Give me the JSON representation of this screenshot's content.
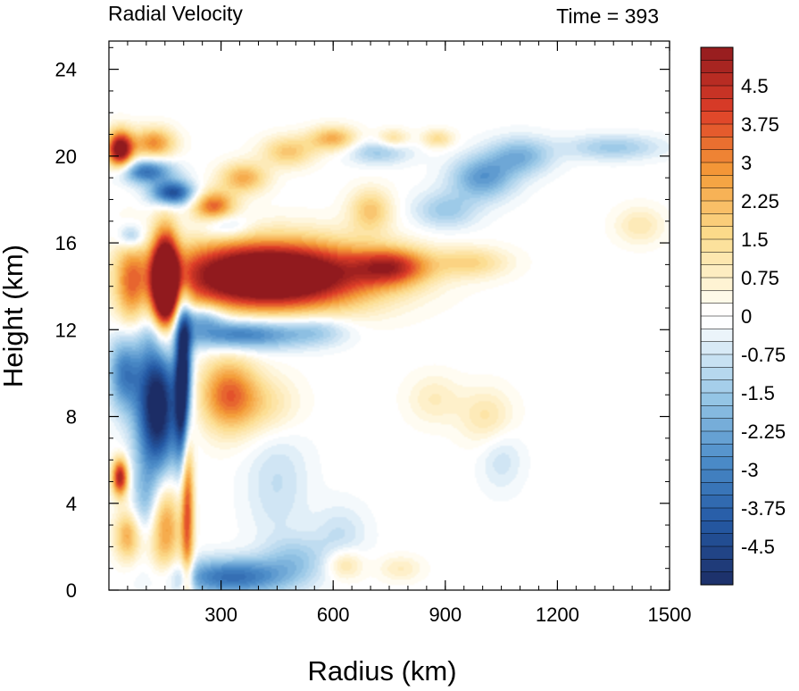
{
  "chart_data": {
    "type": "heatmap",
    "title": "Radial Velocity",
    "subtitle": "Time = 393",
    "xlabel": "Radius (km)",
    "ylabel": "Height (km)",
    "xlim": [
      0,
      1500
    ],
    "ylim": [
      0,
      25.3
    ],
    "x_ticks": [
      300,
      600,
      900,
      1200,
      1500
    ],
    "y_ticks": [
      0,
      4,
      8,
      12,
      16,
      20,
      24
    ],
    "x_tick_labels": [
      "300",
      "600",
      "900",
      "1200",
      "1500"
    ],
    "y_tick_labels": [
      "0",
      "4",
      "8",
      "12",
      "16",
      "20",
      "24"
    ],
    "colorbar": {
      "min": -5.25,
      "max": 5.25,
      "step": 0.25,
      "labels": [
        "4.5",
        "3.75",
        "3",
        "2.25",
        "1.5",
        "0.75",
        "0",
        "-0.75",
        "-1.5",
        "-2.25",
        "-3",
        "-3.75",
        "-4.5"
      ],
      "label_values": [
        4.5,
        3.75,
        3,
        2.25,
        1.5,
        0.75,
        0,
        -0.75,
        -1.5,
        -2.25,
        -3,
        -3.75,
        -4.5
      ]
    },
    "features": [
      {
        "r": 430,
        "z": 14.5,
        "sr": 190,
        "sz": 1.1,
        "v": 8
      },
      {
        "r": 760,
        "z": 14.9,
        "sr": 70,
        "sz": 0.6,
        "v": 3.5
      },
      {
        "r": 970,
        "z": 15.1,
        "sr": 70,
        "sz": 0.5,
        "v": 1.6
      },
      {
        "r": 1420,
        "z": 16.8,
        "sr": 45,
        "sz": 0.6,
        "v": 1.1
      },
      {
        "r": 150,
        "z": 14.0,
        "sr": 25,
        "sz": 1.7,
        "v": 8
      },
      {
        "r": 60,
        "z": 14.0,
        "sr": 30,
        "sz": 1.5,
        "v": 2.5
      },
      {
        "r": 30,
        "z": 20.3,
        "sr": 25,
        "sz": 0.6,
        "v": 6
      },
      {
        "r": 120,
        "z": 20.6,
        "sr": 40,
        "sz": 0.5,
        "v": 3
      },
      {
        "r": 280,
        "z": 17.7,
        "sr": 40,
        "sz": 0.5,
        "v": 3.5
      },
      {
        "r": 360,
        "z": 19.0,
        "sr": 45,
        "sz": 0.5,
        "v": 2.5
      },
      {
        "r": 480,
        "z": 20.2,
        "sr": 50,
        "sz": 0.5,
        "v": 2
      },
      {
        "r": 600,
        "z": 20.8,
        "sr": 45,
        "sz": 0.4,
        "v": 2.5
      },
      {
        "r": 700,
        "z": 17.5,
        "sr": 40,
        "sz": 0.7,
        "v": 2
      },
      {
        "r": 760,
        "z": 20.8,
        "sr": 30,
        "sz": 0.3,
        "v": 1.5
      },
      {
        "r": 880,
        "z": 20.8,
        "sr": 30,
        "sz": 0.3,
        "v": 1.5
      },
      {
        "r": 100,
        "z": 19.3,
        "sr": 50,
        "sz": 0.4,
        "v": -3.5
      },
      {
        "r": 170,
        "z": 18.3,
        "sr": 40,
        "sz": 0.4,
        "v": -4.5
      },
      {
        "r": 310,
        "z": 16.8,
        "sr": 45,
        "sz": 0.4,
        "v": -1.5
      },
      {
        "r": 720,
        "z": 20.2,
        "sr": 60,
        "sz": 0.4,
        "v": -1.5
      },
      {
        "r": 1000,
        "z": 19.0,
        "sr": 60,
        "sz": 0.7,
        "v": -2.5
      },
      {
        "r": 1100,
        "z": 20.0,
        "sr": 60,
        "sz": 0.6,
        "v": -2
      },
      {
        "r": 1350,
        "z": 20.4,
        "sr": 90,
        "sz": 0.4,
        "v": -1.5
      },
      {
        "r": 900,
        "z": 17.5,
        "sr": 60,
        "sz": 0.6,
        "v": -1.5
      },
      {
        "r": 60,
        "z": 16.3,
        "sr": 25,
        "sz": 0.4,
        "v": -2
      },
      {
        "r": 350,
        "z": 11.8,
        "sr": 120,
        "sz": 0.5,
        "v": -3.5
      },
      {
        "r": 250,
        "z": 12.6,
        "sr": 40,
        "sz": 0.4,
        "v": -2
      },
      {
        "r": 320,
        "z": 9.0,
        "sr": 55,
        "sz": 1.2,
        "v": 3.5
      },
      {
        "r": 430,
        "z": 8.5,
        "sr": 60,
        "sz": 1.0,
        "v": 1.2
      },
      {
        "r": 560,
        "z": 12.0,
        "sr": 60,
        "sz": 0.5,
        "v": -1.2
      },
      {
        "r": 870,
        "z": 8.8,
        "sr": 50,
        "sz": 0.8,
        "v": 0.9
      },
      {
        "r": 1010,
        "z": 8.0,
        "sr": 50,
        "sz": 0.9,
        "v": 1.2
      },
      {
        "r": 130,
        "z": 8.5,
        "sr": 40,
        "sz": 2.3,
        "v": -6
      },
      {
        "r": 200,
        "z": 9.5,
        "sr": 15,
        "sz": 2.5,
        "v": -7
      },
      {
        "r": 40,
        "z": 10.0,
        "sr": 30,
        "sz": 1.2,
        "v": -3
      },
      {
        "r": 30,
        "z": 5.2,
        "sr": 15,
        "sz": 0.6,
        "v": 5
      },
      {
        "r": 50,
        "z": 2.5,
        "sr": 25,
        "sz": 0.8,
        "v": 2.5
      },
      {
        "r": 150,
        "z": 3.0,
        "sr": 30,
        "sz": 1.6,
        "v": 3
      },
      {
        "r": 210,
        "z": 4.5,
        "sr": 12,
        "sz": 3.5,
        "v": 4
      },
      {
        "r": 100,
        "z": 4.0,
        "sr": 25,
        "sz": 1.2,
        "v": -1.5
      },
      {
        "r": 330,
        "z": 0.6,
        "sr": 110,
        "sz": 0.6,
        "v": -3.5
      },
      {
        "r": 500,
        "z": 1.5,
        "sr": 60,
        "sz": 0.7,
        "v": -1.2
      },
      {
        "r": 620,
        "z": 2.5,
        "sr": 50,
        "sz": 1.0,
        "v": -0.9
      },
      {
        "r": 630,
        "z": 1.2,
        "sr": 35,
        "sz": 0.5,
        "v": 1.5
      },
      {
        "r": 780,
        "z": 1.0,
        "sr": 40,
        "sz": 0.4,
        "v": 0.9
      },
      {
        "r": 450,
        "z": 5.0,
        "sr": 60,
        "sz": 2.0,
        "v": -0.9
      },
      {
        "r": 1050,
        "z": 6.0,
        "sr": 40,
        "sz": 1.0,
        "v": -0.8
      }
    ]
  }
}
